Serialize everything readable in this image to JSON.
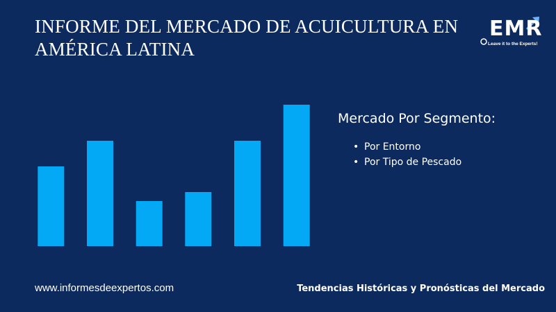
{
  "header": {
    "title_line1": "INFORME DEL MERCADO DE ACUICULTURA EN",
    "title_line2": "AMÉRICA LATINA"
  },
  "logo": {
    "text": "EMR",
    "tagline": "Leave it to the Experts!",
    "icon": "growth-arrow-icon"
  },
  "chart_data": {
    "type": "bar",
    "categories": [
      "",
      "",
      "",
      "",
      "",
      ""
    ],
    "values": [
      115,
      152,
      65,
      78,
      152,
      204
    ],
    "ylim": [
      0,
      215
    ],
    "grid": false,
    "bar_color": "#03a9f4"
  },
  "segment": {
    "heading": "Mercado Por Segmento:",
    "items": [
      "Por Entorno",
      "Por Tipo de Pescado"
    ]
  },
  "footer": {
    "website": "www.informesdeexpertos.com",
    "tagline": "Tendencias Históricas y Pronósticas del Mercado"
  },
  "colors": {
    "background": "#0d2a5e",
    "accent": "#03a9f4"
  }
}
